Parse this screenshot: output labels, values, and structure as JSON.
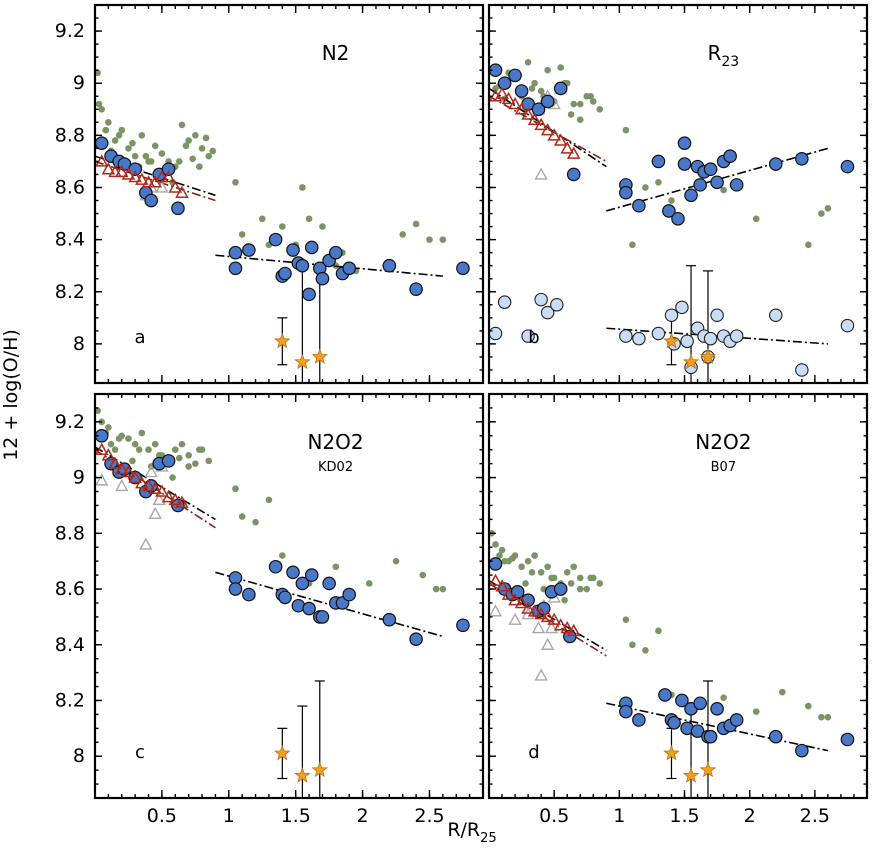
{
  "figure": {
    "ylabel": "12 + log(O/H)",
    "xlabel": "R/R",
    "xlabel_sub": "25"
  },
  "colors": {
    "inner_sample": "#7a9465",
    "outer_blue": "#4a78c8",
    "outer_light": "#c8dcf4",
    "triangle_red": "#b0281a",
    "triangle_grey": "#a8a8a8",
    "star": "#f0a020",
    "fit_line": "#000000",
    "red_fit": "#8a2010"
  },
  "chart_data": [
    {
      "panel": "a",
      "title": "N2",
      "subtitle": "",
      "type": "scatter",
      "xlim": [
        0.0,
        2.9
      ],
      "ylim": [
        7.85,
        9.3
      ],
      "xticks": [
        0.5,
        1,
        1.5,
        2,
        2.5
      ],
      "yticks": [
        8,
        8.2,
        8.4,
        8.6,
        8.8,
        9,
        9.2
      ],
      "green_points": {
        "x": [
          0.02,
          0.05,
          0.1,
          0.15,
          0.2,
          0.25,
          0.3,
          0.35,
          0.4,
          0.45,
          0.5,
          0.55,
          0.6,
          0.65,
          0.7,
          0.75,
          0.8,
          0.85,
          0.03,
          0.08,
          0.12,
          0.18,
          0.22,
          0.28,
          0.33,
          0.38,
          0.42,
          0.48,
          0.52,
          0.58,
          0.63,
          0.68,
          0.73,
          0.78,
          0.83,
          0.88,
          1.05,
          1.1,
          1.25,
          1.3,
          1.4,
          1.5,
          1.55,
          1.6,
          1.7,
          1.8,
          1.85,
          1.95,
          2.3,
          2.4,
          2.5,
          2.6
        ],
        "y": [
          9.04,
          8.9,
          8.85,
          8.78,
          8.82,
          8.75,
          8.72,
          8.8,
          8.7,
          8.76,
          8.73,
          8.7,
          8.68,
          8.84,
          8.78,
          8.8,
          8.75,
          8.72,
          8.92,
          8.82,
          8.74,
          8.8,
          8.7,
          8.77,
          8.68,
          8.72,
          8.7,
          8.65,
          8.67,
          8.62,
          8.7,
          8.76,
          8.71,
          8.68,
          8.79,
          8.74,
          8.62,
          8.42,
          8.48,
          8.38,
          8.45,
          8.38,
          8.6,
          8.48,
          8.45,
          8.3,
          8.35,
          8.28,
          8.42,
          8.46,
          8.4,
          8.4
        ]
      },
      "blue_points": {
        "x": [
          0.05,
          0.12,
          0.18,
          0.22,
          0.3,
          0.38,
          0.42,
          0.48,
          0.55,
          0.62,
          1.05,
          1.05,
          1.15,
          1.35,
          1.4,
          1.42,
          1.48,
          1.52,
          1.55,
          1.6,
          1.62,
          1.68,
          1.7,
          1.75,
          1.8,
          1.85,
          1.9,
          2.2,
          2.4,
          2.75
        ],
        "y": [
          8.77,
          8.72,
          8.7,
          8.69,
          8.67,
          8.58,
          8.55,
          8.65,
          8.67,
          8.52,
          8.35,
          8.29,
          8.36,
          8.4,
          8.26,
          8.27,
          8.36,
          8.31,
          8.3,
          8.19,
          8.37,
          8.29,
          8.25,
          8.32,
          8.35,
          8.27,
          8.29,
          8.3,
          8.21,
          8.29
        ]
      },
      "light_points": {
        "x": [],
        "y": []
      },
      "red_triangles": {
        "x": [
          0.05,
          0.1,
          0.15,
          0.2,
          0.25,
          0.3,
          0.35,
          0.4,
          0.45,
          0.5,
          0.55,
          0.6,
          0.65
        ],
        "y": [
          8.7,
          8.67,
          8.66,
          8.66,
          8.65,
          8.64,
          8.63,
          8.62,
          8.62,
          8.64,
          8.64,
          8.6,
          8.58
        ]
      },
      "grey_triangles": {
        "x": [
          0.4,
          0.42,
          0.45,
          0.5,
          0.38
        ],
        "y": [
          8.58,
          8.6,
          8.62,
          8.6,
          8.57
        ]
      },
      "stars": {
        "x": [
          1.4,
          1.55,
          1.68
        ],
        "y": [
          8.01,
          7.93,
          7.95
        ],
        "err_low": [
          7.92,
          7.85,
          7.85
        ],
        "err_high": [
          8.1,
          8.3,
          8.28
        ]
      },
      "fits": [
        {
          "x": [
            0.0,
            0.9
          ],
          "y": [
            8.72,
            8.57
          ],
          "color": "black"
        },
        {
          "x": [
            0.0,
            0.9
          ],
          "y": [
            8.7,
            8.55
          ],
          "color": "red"
        },
        {
          "x": [
            0.9,
            2.6
          ],
          "y": [
            8.34,
            8.26
          ],
          "color": "black"
        }
      ]
    },
    {
      "panel": "b",
      "title": "R",
      "subtitle": "23",
      "type": "scatter",
      "xlim": [
        0.0,
        2.9
      ],
      "ylim": [
        7.85,
        9.3
      ],
      "xticks": [
        0.5,
        1,
        1.5,
        2,
        2.5
      ],
      "yticks": [
        8,
        8.2,
        8.4,
        8.6,
        8.8,
        9,
        9.2
      ],
      "green_points": {
        "x": [
          0.02,
          0.05,
          0.1,
          0.15,
          0.2,
          0.25,
          0.3,
          0.35,
          0.4,
          0.45,
          0.5,
          0.55,
          0.6,
          0.65,
          0.7,
          0.75,
          0.8,
          0.85,
          0.08,
          0.12,
          0.18,
          0.28,
          0.33,
          0.42,
          0.48,
          0.58,
          0.63,
          0.7,
          0.78,
          1.05,
          1.1,
          1.2,
          1.3,
          1.4,
          1.6,
          1.8,
          2.05,
          2.45,
          2.55,
          2.6
        ],
        "y": [
          9.05,
          8.98,
          9.0,
          9.04,
          9.02,
          8.95,
          9.08,
          9.0,
          8.97,
          9.05,
          8.93,
          9.06,
          9.0,
          8.92,
          8.86,
          8.95,
          8.93,
          8.9,
          8.99,
          8.94,
          9.02,
          8.9,
          8.98,
          8.95,
          8.92,
          9.0,
          8.88,
          8.92,
          8.95,
          8.82,
          8.38,
          8.6,
          8.62,
          8.55,
          8.62,
          8.59,
          8.48,
          8.38,
          8.5,
          8.52
        ],
        "ref_note": ""
      },
      "blue_points": {
        "x": [
          0.05,
          0.12,
          0.2,
          0.25,
          0.3,
          0.38,
          0.45,
          0.55,
          0.65,
          1.05,
          1.05,
          1.15,
          1.3,
          1.38,
          1.45,
          1.5,
          1.5,
          1.55,
          1.6,
          1.62,
          1.65,
          1.7,
          1.75,
          1.8,
          1.85,
          1.9,
          2.2,
          2.4,
          2.75
        ],
        "y": [
          9.05,
          9.0,
          9.03,
          8.97,
          8.92,
          8.9,
          8.93,
          8.98,
          8.65,
          8.61,
          8.58,
          8.53,
          8.7,
          8.51,
          8.48,
          8.77,
          8.69,
          8.57,
          8.68,
          8.61,
          8.66,
          8.67,
          8.62,
          8.7,
          8.72,
          8.61,
          8.69,
          8.71,
          8.68
        ]
      },
      "light_points": {
        "x": [
          0.05,
          0.12,
          0.3,
          0.4,
          0.45,
          0.52,
          1.05,
          1.15,
          1.3,
          1.4,
          1.42,
          1.48,
          1.52,
          1.55,
          1.6,
          1.65,
          1.68,
          1.7,
          1.75,
          1.8,
          1.85,
          1.9,
          2.2,
          2.4,
          2.75
        ],
        "y": [
          8.04,
          8.16,
          8.03,
          8.17,
          8.12,
          8.15,
          8.03,
          8.02,
          8.04,
          8.11,
          8.0,
          8.14,
          8.01,
          7.91,
          8.06,
          8.03,
          7.95,
          8.02,
          8.11,
          8.03,
          8.01,
          8.03,
          8.11,
          7.9,
          8.07
        ]
      },
      "red_triangles": {
        "x": [
          0.05,
          0.1,
          0.15,
          0.2,
          0.25,
          0.3,
          0.35,
          0.4,
          0.45,
          0.5,
          0.55,
          0.6,
          0.65
        ],
        "y": [
          8.95,
          8.96,
          8.94,
          8.92,
          8.9,
          8.88,
          8.86,
          8.84,
          8.82,
          8.8,
          8.78,
          8.75,
          8.73
        ]
      },
      "grey_triangles": {
        "x": [
          0.38,
          0.42,
          0.45,
          0.5,
          0.55,
          0.4
        ],
        "y": [
          8.9,
          8.93,
          8.95,
          8.92,
          8.98,
          8.65
        ]
      },
      "stars": {
        "x": [
          1.4,
          1.55,
          1.68
        ],
        "y": [
          8.01,
          7.93,
          7.95
        ],
        "err_low": [
          7.92,
          7.85,
          7.85
        ],
        "err_high": [
          8.1,
          8.3,
          8.28
        ]
      },
      "fits": [
        {
          "x": [
            0.0,
            0.9
          ],
          "y": [
            8.98,
            8.68
          ],
          "color": "black"
        },
        {
          "x": [
            0.0,
            0.9
          ],
          "y": [
            8.95,
            8.7
          ],
          "color": "red"
        },
        {
          "x": [
            0.9,
            2.6
          ],
          "y": [
            8.51,
            8.75
          ],
          "color": "black"
        },
        {
          "x": [
            0.9,
            2.6
          ],
          "y": [
            8.06,
            8.0
          ],
          "color": "black"
        }
      ]
    },
    {
      "panel": "c",
      "title": "N2O2",
      "subtitle": "KD02",
      "type": "scatter",
      "xlim": [
        0.0,
        2.9
      ],
      "ylim": [
        7.85,
        9.3
      ],
      "xticks": [
        0.5,
        1,
        1.5,
        2,
        2.5
      ],
      "yticks": [
        8,
        8.2,
        8.4,
        8.6,
        8.8,
        9,
        9.2
      ],
      "green_points": {
        "x": [
          0.02,
          0.05,
          0.1,
          0.15,
          0.2,
          0.25,
          0.3,
          0.35,
          0.4,
          0.45,
          0.5,
          0.55,
          0.6,
          0.65,
          0.7,
          0.75,
          0.8,
          0.85,
          0.08,
          0.12,
          0.18,
          0.28,
          0.33,
          0.42,
          0.48,
          0.58,
          0.63,
          0.7,
          0.78,
          1.05,
          1.1,
          1.2,
          1.3,
          1.4,
          1.6,
          1.8,
          2.05,
          2.25,
          2.45,
          2.55,
          2.6
        ],
        "y": [
          9.24,
          9.2,
          9.18,
          9.1,
          9.15,
          9.14,
          9.12,
          9.16,
          9.1,
          9.12,
          9.08,
          9.05,
          9.1,
          9.12,
          9.08,
          9.05,
          9.1,
          9.06,
          9.16,
          9.12,
          9.14,
          9.06,
          9.1,
          9.04,
          9.08,
          9.0,
          9.07,
          9.04,
          9.1,
          8.96,
          8.86,
          8.84,
          8.92,
          8.72,
          8.62,
          8.68,
          8.62,
          8.7,
          8.65,
          8.6,
          8.6
        ]
      },
      "blue_points": {
        "x": [
          0.05,
          0.12,
          0.18,
          0.22,
          0.3,
          0.38,
          0.42,
          0.48,
          0.55,
          0.62,
          1.05,
          1.05,
          1.15,
          1.35,
          1.4,
          1.42,
          1.48,
          1.52,
          1.55,
          1.6,
          1.62,
          1.68,
          1.7,
          1.75,
          1.8,
          1.85,
          1.9,
          2.2,
          2.4,
          2.75
        ],
        "y": [
          9.15,
          9.05,
          9.02,
          9.03,
          9.0,
          8.95,
          8.97,
          9.05,
          9.06,
          8.9,
          8.64,
          8.6,
          8.58,
          8.68,
          8.58,
          8.57,
          8.66,
          8.54,
          8.62,
          8.53,
          8.65,
          8.5,
          8.5,
          8.62,
          8.55,
          8.55,
          8.58,
          8.49,
          8.42,
          8.47
        ]
      },
      "light_points": {
        "x": [],
        "y": []
      },
      "red_triangles": {
        "x": [
          0.05,
          0.1,
          0.15,
          0.2,
          0.25,
          0.3,
          0.35,
          0.4,
          0.45,
          0.5,
          0.55,
          0.6,
          0.65
        ],
        "y": [
          9.1,
          9.08,
          9.05,
          9.03,
          9.02,
          9.0,
          8.98,
          8.97,
          8.96,
          8.95,
          8.93,
          8.92,
          8.91
        ]
      },
      "grey_triangles": {
        "x": [
          0.05,
          0.2,
          0.3,
          0.38,
          0.45,
          0.48,
          0.42,
          0.5
        ],
        "y": [
          8.99,
          8.97,
          9.0,
          8.76,
          8.87,
          8.92,
          9.02,
          9.04
        ]
      },
      "stars": {
        "x": [
          1.4,
          1.55,
          1.68
        ],
        "y": [
          8.01,
          7.93,
          7.95
        ],
        "err_low": [
          7.92,
          7.85,
          7.85
        ],
        "err_high": [
          8.1,
          8.18,
          8.27
        ]
      },
      "fits": [
        {
          "x": [
            0.0,
            0.9
          ],
          "y": [
            9.11,
            8.85
          ],
          "color": "black"
        },
        {
          "x": [
            0.0,
            0.9
          ],
          "y": [
            9.1,
            8.82
          ],
          "color": "red"
        },
        {
          "x": [
            0.9,
            2.6
          ],
          "y": [
            8.66,
            8.43
          ],
          "color": "black"
        }
      ]
    },
    {
      "panel": "d",
      "title": "N2O2",
      "subtitle": "B07",
      "type": "scatter",
      "xlim": [
        0.0,
        2.9
      ],
      "ylim": [
        7.85,
        9.3
      ],
      "xticks": [
        0.5,
        1,
        1.5,
        2,
        2.5
      ],
      "yticks": [
        8,
        8.2,
        8.4,
        8.6,
        8.8,
        9,
        9.2
      ],
      "green_points": {
        "x": [
          0.02,
          0.05,
          0.1,
          0.15,
          0.2,
          0.25,
          0.3,
          0.35,
          0.4,
          0.45,
          0.5,
          0.55,
          0.6,
          0.65,
          0.7,
          0.75,
          0.8,
          0.85,
          0.08,
          0.12,
          0.18,
          0.28,
          0.33,
          0.42,
          0.48,
          0.58,
          0.63,
          0.7,
          0.78,
          1.05,
          1.1,
          1.2,
          1.3,
          1.4,
          1.6,
          1.8,
          2.05,
          2.25,
          2.45,
          2.55,
          2.6
        ],
        "y": [
          8.8,
          8.76,
          8.74,
          8.7,
          8.72,
          8.68,
          8.7,
          8.72,
          8.66,
          8.68,
          8.64,
          8.62,
          8.66,
          8.68,
          8.64,
          8.6,
          8.64,
          8.62,
          8.72,
          8.7,
          8.71,
          8.62,
          8.66,
          8.6,
          8.64,
          8.56,
          8.62,
          8.6,
          8.64,
          8.49,
          8.4,
          8.38,
          8.45,
          8.22,
          8.18,
          8.21,
          8.16,
          8.23,
          8.18,
          8.14,
          8.14
        ]
      },
      "blue_points": {
        "x": [
          0.05,
          0.12,
          0.18,
          0.22,
          0.3,
          0.38,
          0.42,
          0.48,
          0.55,
          0.62,
          1.05,
          1.05,
          1.15,
          1.35,
          1.4,
          1.42,
          1.48,
          1.52,
          1.55,
          1.6,
          1.62,
          1.68,
          1.7,
          1.75,
          1.8,
          1.85,
          1.9,
          2.2,
          2.4,
          2.75
        ],
        "y": [
          8.69,
          8.6,
          8.58,
          8.59,
          8.56,
          8.52,
          8.53,
          8.59,
          8.6,
          8.43,
          8.19,
          8.16,
          8.13,
          8.22,
          8.13,
          8.12,
          8.2,
          8.1,
          8.17,
          8.09,
          8.19,
          8.07,
          8.07,
          8.17,
          8.1,
          8.11,
          8.13,
          8.07,
          8.02,
          8.06
        ]
      },
      "light_points": {
        "x": [],
        "y": []
      },
      "red_triangles": {
        "x": [
          0.05,
          0.1,
          0.15,
          0.2,
          0.25,
          0.3,
          0.35,
          0.4,
          0.45,
          0.5,
          0.55,
          0.6,
          0.65
        ],
        "y": [
          8.63,
          8.61,
          8.58,
          8.56,
          8.55,
          8.53,
          8.52,
          8.51,
          8.5,
          8.49,
          8.47,
          8.46,
          8.45
        ]
      },
      "grey_triangles": {
        "x": [
          0.05,
          0.2,
          0.3,
          0.38,
          0.45,
          0.48,
          0.42,
          0.5,
          0.4
        ],
        "y": [
          8.52,
          8.49,
          8.51,
          8.46,
          8.4,
          8.46,
          8.54,
          8.57,
          8.29
        ]
      },
      "stars": {
        "x": [
          1.4,
          1.55,
          1.68
        ],
        "y": [
          8.01,
          7.93,
          7.95
        ],
        "err_low": [
          7.92,
          7.85,
          7.85
        ],
        "err_high": [
          8.1,
          8.18,
          8.27
        ]
      },
      "fits": [
        {
          "x": [
            0.0,
            0.9
          ],
          "y": [
            8.63,
            8.38
          ],
          "color": "black"
        },
        {
          "x": [
            0.0,
            0.9
          ],
          "y": [
            8.62,
            8.36
          ],
          "color": "red"
        },
        {
          "x": [
            0.9,
            2.6
          ],
          "y": [
            8.19,
            8.02
          ],
          "color": "black"
        }
      ]
    }
  ]
}
